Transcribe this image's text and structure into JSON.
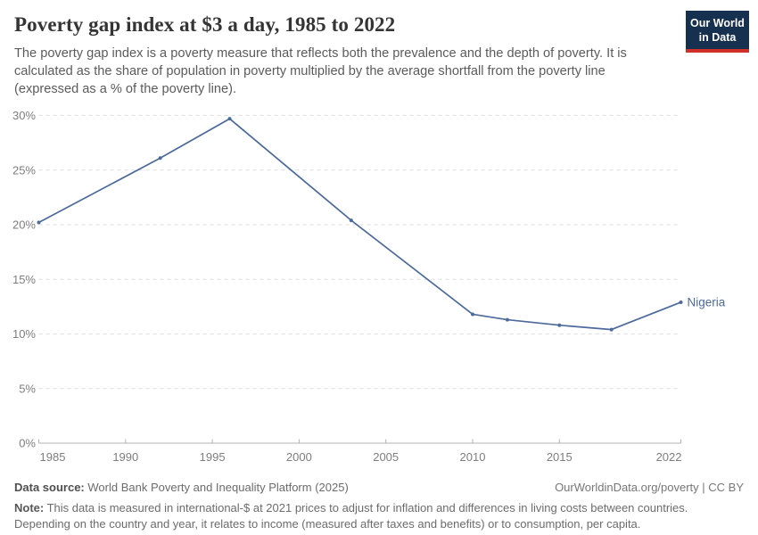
{
  "header": {
    "title": "Poverty gap index at $3 a day, 1985 to 2022",
    "subtitle": "The poverty gap index is a poverty measure that reflects both the prevalence and the depth of poverty. It is calculated as the share of population in poverty multiplied by the average shortfall from the poverty line (expressed as a % of the poverty line).",
    "logo": {
      "line1": "Our World",
      "line2": "in Data"
    }
  },
  "chart_data": {
    "type": "line",
    "title": "Poverty gap index at $3 a day, 1985 to 2022",
    "xlabel": "",
    "ylabel": "",
    "xlim": [
      1985,
      2022
    ],
    "ylim": [
      0,
      30
    ],
    "xticks": [
      1985,
      1990,
      1995,
      2000,
      2005,
      2010,
      2015,
      2022
    ],
    "yticks": [
      0,
      5,
      10,
      15,
      20,
      25,
      30
    ],
    "ytick_suffix": "%",
    "grid": "horizontal-dashed",
    "legend_position": "end-of-line-label",
    "series": [
      {
        "name": "Nigeria",
        "color": "#4c6a9c",
        "x": [
          1985,
          1992,
          1996,
          2003,
          2010,
          2012,
          2015,
          2018,
          2022
        ],
        "values": [
          20.2,
          26.1,
          29.7,
          20.4,
          11.8,
          11.3,
          10.8,
          10.4,
          12.9
        ]
      }
    ]
  },
  "footer": {
    "datasource_label": "Data source:",
    "datasource_value": "World Bank Poverty and Inequality Platform (2025)",
    "link": "OurWorldinData.org/poverty | CC BY",
    "note_label": "Note:",
    "note_text": "This data is measured in international-$ at 2021 prices to adjust for inflation and differences in living costs between countries. Depending on the country and year, it relates to income (measured after taxes and benefits) or to consumption, per capita."
  },
  "colors": {
    "series_blue": "#4c6a9c",
    "logo_navy": "#16304f",
    "logo_red": "#cf302a",
    "grid_gray": "#dedede",
    "axis_gray": "#b3b3b3",
    "tick_text_gray": "#7e7e7e"
  }
}
